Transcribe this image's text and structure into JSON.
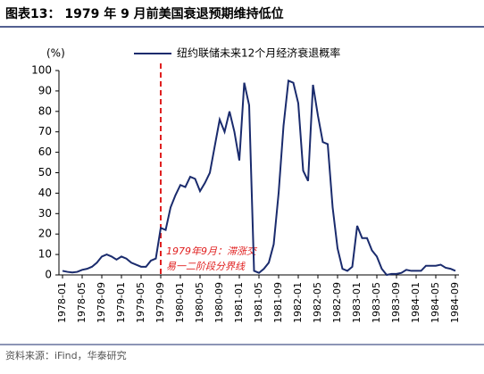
{
  "chart_data": {
    "type": "line",
    "title": "图表13： 1979 年 9 月前美国衰退预期维持低位",
    "y_unit": "(%)",
    "source": "资料来源：iFind，华泰研究",
    "categories": [
      "1978-01",
      null,
      null,
      null,
      "1978-05",
      null,
      null,
      null,
      "1978-09",
      null,
      null,
      null,
      "1979-01",
      null,
      null,
      null,
      "1979-05",
      null,
      null,
      null,
      "1979-09",
      null,
      null,
      null,
      "1980-01",
      null,
      null,
      null,
      "1980-05",
      null,
      null,
      null,
      "1980-09",
      null,
      null,
      null,
      "1981-01",
      null,
      null,
      null,
      "1981-05",
      null,
      null,
      null,
      "1981-09",
      null,
      null,
      null,
      "1982-01",
      null,
      null,
      null,
      "1982-05",
      null,
      null,
      null,
      "1982-09",
      null,
      null,
      null,
      "1983-01",
      null,
      null,
      null,
      "1983-05",
      null,
      null,
      null,
      "1983-09",
      null,
      null,
      null,
      "1984-01",
      null,
      null,
      null,
      "1984-05",
      null,
      null,
      null,
      "1984-09"
    ],
    "series": [
      {
        "name": "纽约联储未来12个月经济衰退概率",
        "color": "#1a2b6d",
        "values": [
          2,
          1.5,
          1.2,
          1.5,
          2.5,
          3,
          4,
          6,
          9,
          10,
          9,
          7.5,
          9,
          8,
          6,
          5,
          4,
          4,
          7,
          8,
          23,
          22,
          33,
          39,
          44,
          43,
          48,
          47,
          41,
          45,
          50,
          63,
          76,
          70,
          80,
          70,
          56,
          94,
          83,
          2,
          1,
          3,
          6,
          15,
          40,
          73,
          95,
          94,
          84,
          51,
          46,
          93,
          78,
          65,
          64,
          33,
          13,
          3,
          2,
          4,
          24,
          18,
          18,
          12,
          9,
          3,
          0,
          0.5,
          0.5,
          1,
          2.5,
          2,
          2,
          2,
          4.5,
          4.5,
          4.5,
          5,
          3.5,
          3,
          2
        ]
      }
    ],
    "ylim": [
      0,
      100
    ],
    "yticks": [
      0,
      10,
      20,
      30,
      40,
      50,
      60,
      70,
      80,
      90,
      100
    ],
    "legend": "top",
    "annotation": {
      "x": "1979-09",
      "color": "#e02020",
      "lines": [
        "1979年9月：滞涨交",
        "易一二阶段分界线"
      ]
    }
  }
}
